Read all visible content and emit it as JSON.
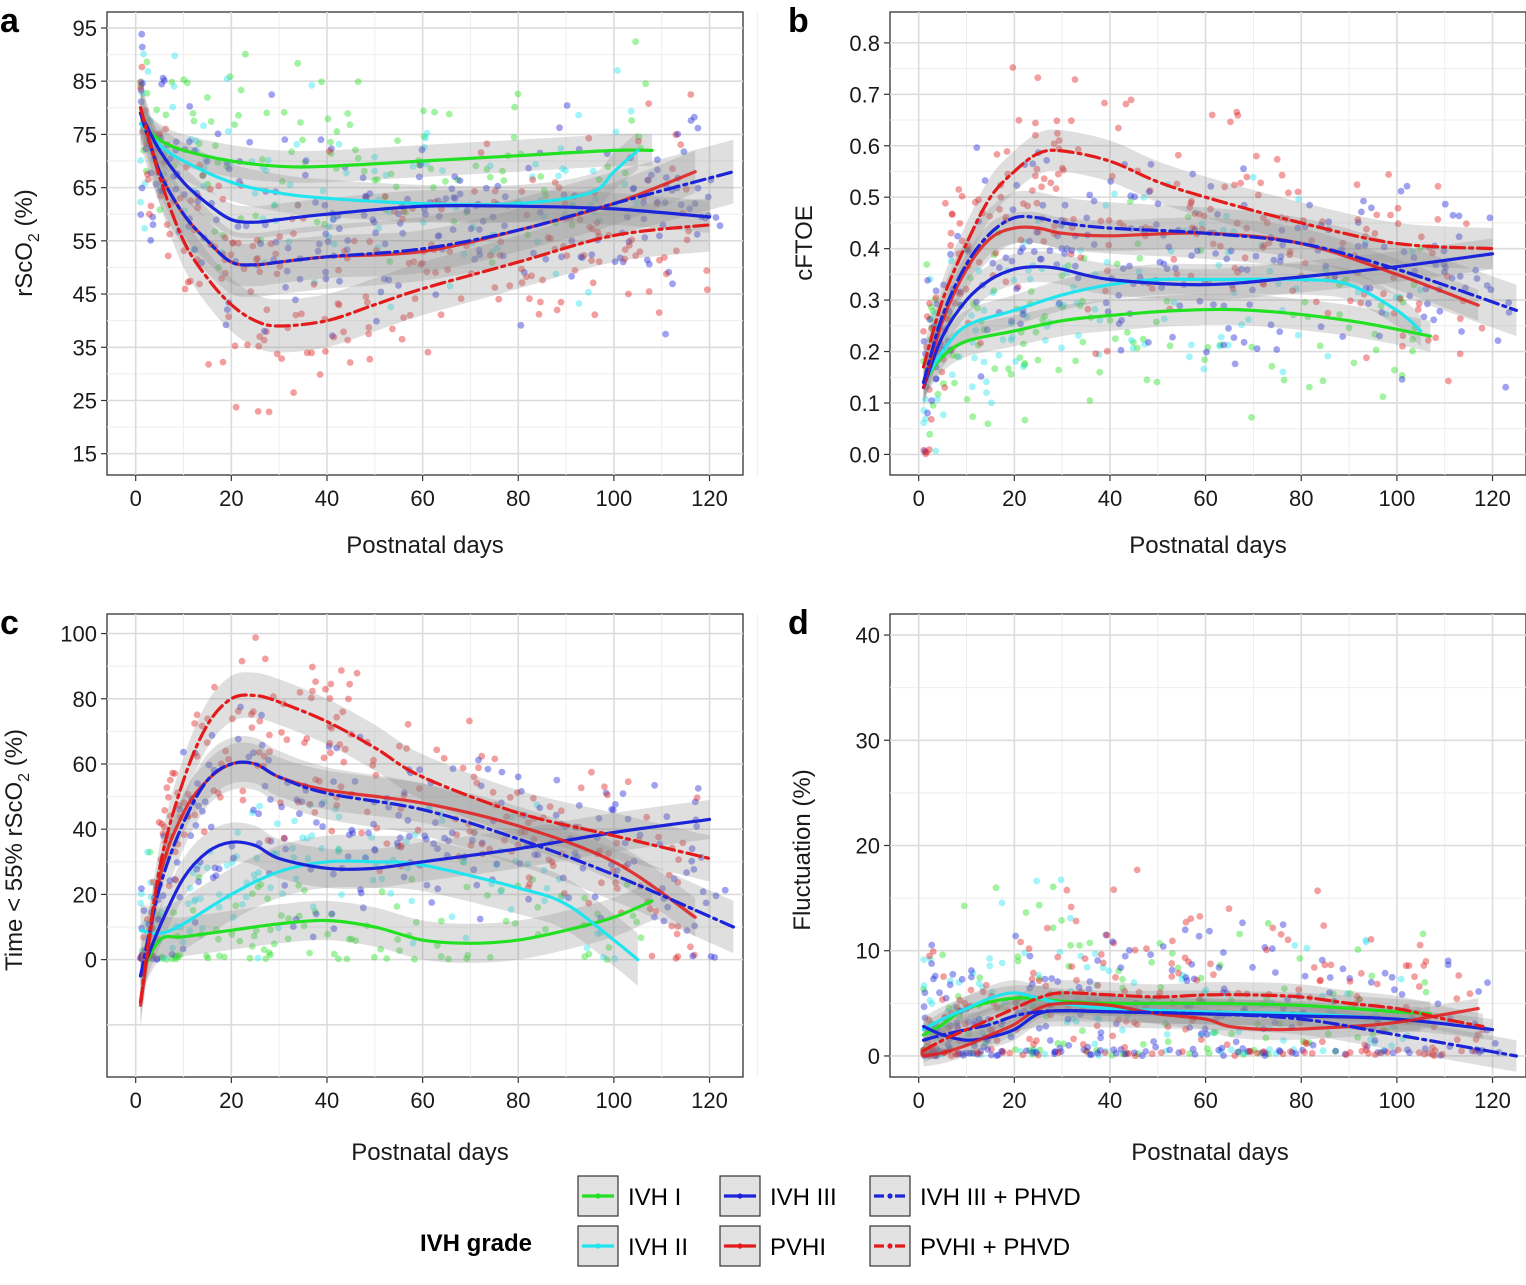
{
  "chart_data": [
    {
      "type": "scatter",
      "panel": "a",
      "xlabel": "Postnatal days",
      "ylabel": "rScO2 (%)",
      "xlim": [
        -6,
        127
      ],
      "ylim": [
        11,
        98
      ],
      "xticks": [
        0,
        20,
        40,
        60,
        80,
        100,
        120
      ],
      "yticks": [
        15,
        25,
        35,
        45,
        55,
        65,
        75,
        85,
        95
      ],
      "x_tick_labels": [
        "0",
        "20",
        "40",
        "60",
        "80",
        "100",
        "120"
      ],
      "y_tick_labels": [
        "15",
        "25",
        "35",
        "45",
        "55",
        "65",
        "75",
        "85",
        "95"
      ],
      "series": [
        {
          "name": "IVH I",
          "x": [
            1,
            5,
            10,
            20,
            30,
            40,
            60,
            80,
            100,
            108
          ],
          "y": [
            77,
            74,
            72,
            70,
            69,
            69,
            70,
            71,
            72,
            72
          ],
          "band": 3,
          "range": [
            1,
            108
          ]
        },
        {
          "name": "IVH II",
          "x": [
            1,
            5,
            10,
            20,
            30,
            40,
            60,
            80,
            95,
            100,
            105
          ],
          "y": [
            77,
            73,
            70,
            66,
            64,
            63,
            62,
            62,
            64,
            68,
            72
          ],
          "band": 3.5,
          "range": [
            1,
            105
          ]
        },
        {
          "name": "IVH III",
          "x": [
            1,
            5,
            10,
            15,
            20,
            25,
            30,
            40,
            60,
            80,
            100,
            120
          ],
          "y": [
            79,
            72,
            66,
            62,
            59,
            58.5,
            59,
            60,
            61.5,
            61.5,
            61,
            59.5
          ],
          "band": 3,
          "range": [
            1,
            120
          ]
        },
        {
          "name": "PVHI",
          "x": [
            1,
            5,
            10,
            15,
            20,
            25,
            30,
            40,
            60,
            80,
            100,
            117
          ],
          "y": [
            80,
            68,
            60,
            55,
            51,
            50.5,
            51,
            52,
            53,
            57,
            62,
            68
          ],
          "band": 4,
          "range": [
            1,
            117
          ]
        },
        {
          "name": "IVH III + PHVD",
          "x": [
            1,
            5,
            10,
            15,
            20,
            25,
            30,
            40,
            60,
            80,
            100,
            125
          ],
          "y": [
            79,
            68,
            60,
            55,
            51,
            50.5,
            51,
            52,
            53.5,
            57,
            62,
            68
          ],
          "band": 6,
          "range": [
            1,
            125
          ]
        },
        {
          "name": "PVHI + PHVD",
          "x": [
            1,
            5,
            10,
            15,
            20,
            25,
            30,
            40,
            50,
            60,
            80,
            100,
            120
          ],
          "y": [
            80,
            67,
            55,
            48,
            43,
            40,
            39,
            40,
            43,
            46,
            51,
            56,
            58
          ],
          "band": 5,
          "range": [
            1,
            120
          ]
        }
      ]
    },
    {
      "type": "scatter",
      "panel": "b",
      "xlabel": "Postnatal days",
      "ylabel": "cFTOE",
      "xlim": [
        -6,
        127
      ],
      "ylim": [
        -0.04,
        0.86
      ],
      "xticks": [
        0,
        20,
        40,
        60,
        80,
        100,
        120
      ],
      "yticks": [
        0,
        0.1,
        0.2,
        0.3,
        0.4,
        0.5,
        0.6,
        0.7,
        0.8
      ],
      "x_tick_labels": [
        "0",
        "20",
        "40",
        "60",
        "80",
        "100",
        "120"
      ],
      "y_tick_labels": [
        "0.0",
        "0.1",
        "0.2",
        "0.3",
        "0.4",
        "0.5",
        "0.6",
        "0.7",
        "0.8"
      ],
      "series": [
        {
          "name": "IVH I",
          "x": [
            1,
            5,
            10,
            20,
            30,
            40,
            55,
            70,
            90,
            107
          ],
          "y": [
            0.14,
            0.19,
            0.22,
            0.24,
            0.26,
            0.27,
            0.28,
            0.28,
            0.26,
            0.23
          ],
          "band": 0.03,
          "range": [
            1,
            107
          ]
        },
        {
          "name": "IVH II",
          "x": [
            1,
            5,
            10,
            20,
            30,
            40,
            50,
            60,
            80,
            90,
            100,
            105
          ],
          "y": [
            0.14,
            0.2,
            0.25,
            0.28,
            0.31,
            0.33,
            0.34,
            0.34,
            0.34,
            0.33,
            0.28,
            0.24
          ],
          "band": 0.03,
          "range": [
            1,
            105
          ]
        },
        {
          "name": "IVH III",
          "x": [
            1,
            5,
            10,
            15,
            20,
            25,
            30,
            40,
            60,
            80,
            100,
            120
          ],
          "y": [
            0.13,
            0.23,
            0.3,
            0.34,
            0.36,
            0.365,
            0.36,
            0.34,
            0.33,
            0.345,
            0.365,
            0.39
          ],
          "band": 0.03,
          "range": [
            1,
            120
          ]
        },
        {
          "name": "PVHI",
          "x": [
            1,
            5,
            10,
            15,
            20,
            25,
            30,
            40,
            60,
            80,
            100,
            117
          ],
          "y": [
            0.13,
            0.26,
            0.36,
            0.42,
            0.44,
            0.44,
            0.43,
            0.425,
            0.43,
            0.41,
            0.35,
            0.29
          ],
          "band": 0.03,
          "range": [
            1,
            117
          ]
        },
        {
          "name": "IVH III + PHVD",
          "x": [
            1,
            5,
            10,
            15,
            20,
            25,
            30,
            40,
            60,
            80,
            100,
            125
          ],
          "y": [
            0.14,
            0.27,
            0.37,
            0.43,
            0.46,
            0.46,
            0.45,
            0.44,
            0.43,
            0.41,
            0.36,
            0.28
          ],
          "band": 0.05,
          "range": [
            1,
            125
          ]
        },
        {
          "name": "PVHI + PHVD",
          "x": [
            1,
            5,
            10,
            15,
            20,
            25,
            30,
            40,
            50,
            60,
            80,
            100,
            120
          ],
          "y": [
            0.17,
            0.3,
            0.41,
            0.5,
            0.55,
            0.585,
            0.59,
            0.57,
            0.53,
            0.5,
            0.45,
            0.41,
            0.4
          ],
          "band": 0.04,
          "range": [
            1,
            120
          ]
        }
      ]
    },
    {
      "type": "scatter",
      "panel": "c",
      "xlabel": "Postnatal days",
      "ylabel": "Time < 55% rScO2 (%)",
      "xlim": [
        -6,
        127
      ],
      "ylim": [
        -36,
        106
      ],
      "xticks": [
        0,
        20,
        40,
        60,
        80,
        100,
        120
      ],
      "yticks": [
        0,
        20,
        40,
        60,
        80,
        100
      ],
      "x_tick_labels": [
        "0",
        "20",
        "40",
        "60",
        "80",
        "100",
        "120"
      ],
      "y_tick_labels": [
        "0",
        "20",
        "40",
        "60",
        "80",
        "100"
      ],
      "extra_grid_y": [
        -20
      ],
      "series": [
        {
          "name": "IVH I",
          "x": [
            1,
            5,
            10,
            20,
            30,
            40,
            50,
            60,
            70,
            80,
            90,
            100,
            108
          ],
          "y": [
            -5,
            6,
            7,
            9,
            11,
            12,
            10,
            6,
            5,
            6,
            9,
            13,
            18
          ],
          "band": 6,
          "range": [
            1,
            108
          ]
        },
        {
          "name": "IVH II",
          "x": [
            1,
            5,
            10,
            20,
            30,
            40,
            50,
            60,
            80,
            90,
            100,
            105
          ],
          "y": [
            9,
            8,
            11,
            20,
            27,
            30,
            30,
            29,
            22,
            17,
            6,
            0
          ],
          "band": 8,
          "range": [
            1,
            105
          ]
        },
        {
          "name": "IVH III",
          "x": [
            1,
            5,
            10,
            15,
            20,
            25,
            30,
            40,
            50,
            60,
            80,
            100,
            120
          ],
          "y": [
            -5,
            10,
            25,
            33,
            36,
            35,
            31,
            28,
            28,
            30,
            34,
            39,
            43
          ],
          "band": 6,
          "range": [
            1,
            120
          ]
        },
        {
          "name": "PVHI",
          "x": [
            1,
            5,
            10,
            15,
            20,
            25,
            30,
            40,
            60,
            80,
            100,
            117
          ],
          "y": [
            -14,
            25,
            45,
            55,
            60,
            60,
            56,
            52,
            48,
            41,
            30,
            13
          ],
          "band": 6,
          "range": [
            1,
            117
          ]
        },
        {
          "name": "IVH III + PHVD",
          "x": [
            1,
            5,
            10,
            15,
            20,
            25,
            30,
            40,
            60,
            80,
            100,
            125
          ],
          "y": [
            -5,
            22,
            42,
            55,
            60,
            60,
            56,
            51,
            46,
            37,
            26,
            10
          ],
          "band": 8,
          "range": [
            1,
            125
          ]
        },
        {
          "name": "PVHI + PHVD",
          "x": [
            1,
            5,
            10,
            15,
            20,
            25,
            30,
            40,
            50,
            60,
            80,
            100,
            120
          ],
          "y": [
            -13,
            28,
            55,
            72,
            80,
            81,
            79,
            73,
            65,
            56,
            45,
            38,
            31
          ],
          "band": 7,
          "range": [
            1,
            120
          ]
        }
      ]
    },
    {
      "type": "scatter",
      "panel": "d",
      "xlabel": "Postnatal days",
      "ylabel": "Fluctuation (%)",
      "xlim": [
        -6,
        127
      ],
      "ylim": [
        -2,
        42
      ],
      "xticks": [
        0,
        20,
        40,
        60,
        80,
        100,
        120
      ],
      "yticks": [
        0,
        10,
        20,
        30,
        40
      ],
      "x_tick_labels": [
        "0",
        "20",
        "40",
        "60",
        "80",
        "100",
        "120"
      ],
      "y_tick_labels": [
        "0",
        "10",
        "20",
        "30",
        "40"
      ],
      "series": [
        {
          "name": "IVH I",
          "x": [
            1,
            5,
            10,
            20,
            30,
            40,
            60,
            80,
            100,
            107
          ],
          "y": [
            2,
            3,
            4.5,
            5.5,
            5.2,
            5,
            5,
            4.8,
            4.2,
            4
          ],
          "band": 1.2,
          "range": [
            1,
            107
          ]
        },
        {
          "name": "IVH II",
          "x": [
            1,
            5,
            10,
            15,
            20,
            25,
            30,
            40,
            60,
            80,
            100,
            105
          ],
          "y": [
            2.5,
            3.5,
            4.5,
            5.5,
            6,
            5.5,
            5,
            4.5,
            4.2,
            4,
            3.5,
            3.5
          ],
          "band": 1.2,
          "range": [
            1,
            105
          ]
        },
        {
          "name": "IVH III",
          "x": [
            1,
            5,
            10,
            15,
            20,
            25,
            30,
            40,
            60,
            80,
            100,
            120
          ],
          "y": [
            2.8,
            2,
            1.5,
            1.8,
            2.5,
            4,
            4.3,
            4.2,
            4,
            3.8,
            3.5,
            2.5
          ],
          "band": 1,
          "range": [
            1,
            120
          ]
        },
        {
          "name": "PVHI",
          "x": [
            1,
            5,
            10,
            15,
            20,
            25,
            30,
            40,
            50,
            60,
            65,
            75,
            90,
            100,
            117
          ],
          "y": [
            0,
            0.3,
            1,
            2,
            3,
            4.5,
            5,
            4.8,
            4,
            3.5,
            2.8,
            2.5,
            2.8,
            3.2,
            4.5
          ],
          "band": 1,
          "range": [
            1,
            117
          ]
        },
        {
          "name": "IVH III + PHVD",
          "x": [
            1,
            5,
            10,
            15,
            20,
            25,
            30,
            40,
            60,
            80,
            100,
            125
          ],
          "y": [
            1.5,
            2,
            2.5,
            3,
            3.8,
            4.2,
            4.3,
            4.2,
            4,
            3.5,
            2,
            0
          ],
          "band": 1.5,
          "range": [
            1,
            125
          ]
        },
        {
          "name": "PVHI + PHVD",
          "x": [
            1,
            5,
            10,
            15,
            20,
            25,
            30,
            40,
            50,
            60,
            70,
            80,
            90,
            100,
            110,
            118
          ],
          "y": [
            0.5,
            1.5,
            2.5,
            3.5,
            4.5,
            5.5,
            6,
            5.8,
            5.6,
            5.8,
            5.8,
            5.6,
            5,
            4.5,
            3.5,
            2.8
          ],
          "band": 1.2,
          "range": [
            1,
            118
          ]
        }
      ]
    }
  ],
  "panel_labels": [
    "a",
    "b",
    "c",
    "d"
  ],
  "axis_titles": {
    "x": "Postnatal days",
    "y_a_main": "rScO",
    "y_a_sub": "2",
    "y_a_suffix": " (%)",
    "y_b": "cFTOE",
    "y_c_main": "Time < 55% rScO",
    "y_c_sub": "2",
    "y_c_suffix": " (%)",
    "y_d": "Fluctuation (%)"
  },
  "legend": {
    "title": "IVH grade",
    "items": [
      {
        "label": "IVH I",
        "color": "#22e022",
        "dash": "solid"
      },
      {
        "label": "IVH II",
        "color": "#22e4ee",
        "dash": "solid"
      },
      {
        "label": "IVH III",
        "color": "#1b24d8",
        "dash": "solid"
      },
      {
        "label": "PVHI",
        "color": "#e31b1b",
        "dash": "solid"
      },
      {
        "label": "IVH III + PHVD",
        "color": "#1b24d8",
        "dash": "dashdot"
      },
      {
        "label": "PVHI + PHVD",
        "color": "#e31b1b",
        "dash": "dashdot"
      }
    ]
  },
  "style_colors": {
    "band": "#8c8c8c",
    "grid": "#dcdcdc",
    "axis": "#333333"
  }
}
